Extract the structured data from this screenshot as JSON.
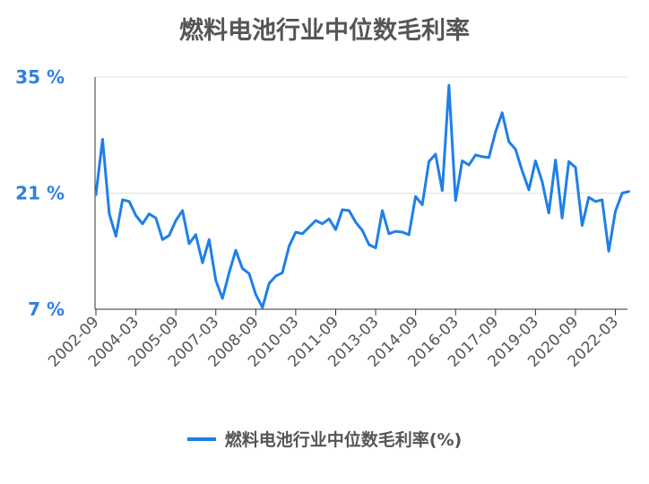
{
  "chart_data": {
    "type": "line",
    "title": "燃料电池行业中位数毛利率",
    "xlabel": "",
    "ylabel": "",
    "ylim": [
      7,
      35
    ],
    "yticks": [
      {
        "value": 35,
        "label": "35 %"
      },
      {
        "value": 21,
        "label": "21 %"
      },
      {
        "value": 7,
        "label": "7 %"
      }
    ],
    "x_tick_labels": [
      "2002-09",
      "2004-03",
      "2005-09",
      "2007-03",
      "2008-09",
      "2010-03",
      "2011-09",
      "2013-03",
      "2014-09",
      "2016-03",
      "2017-09",
      "2019-03",
      "2020-09",
      "2022-03"
    ],
    "grid": "horizontal",
    "legend_position": "bottom",
    "color": "#1f7fe8",
    "series": [
      {
        "name": "燃料电池行业中位数毛利率(%)",
        "x": [
          "2002-09",
          "2002-12",
          "2003-03",
          "2003-06",
          "2003-09",
          "2003-12",
          "2004-03",
          "2004-06",
          "2004-09",
          "2004-12",
          "2005-03",
          "2005-06",
          "2005-09",
          "2005-12",
          "2006-03",
          "2006-06",
          "2006-09",
          "2006-12",
          "2007-03",
          "2007-06",
          "2007-09",
          "2007-12",
          "2008-03",
          "2008-06",
          "2008-09",
          "2008-12",
          "2009-03",
          "2009-06",
          "2009-09",
          "2009-12",
          "2010-03",
          "2010-06",
          "2010-09",
          "2010-12",
          "2011-03",
          "2011-06",
          "2011-09",
          "2011-12",
          "2012-03",
          "2012-06",
          "2012-09",
          "2012-12",
          "2013-03",
          "2013-06",
          "2013-09",
          "2013-12",
          "2014-03",
          "2014-06",
          "2014-09",
          "2014-12",
          "2015-03",
          "2015-06",
          "2015-09",
          "2015-12",
          "2016-03",
          "2016-06",
          "2016-09",
          "2016-12",
          "2017-03",
          "2017-06",
          "2017-09",
          "2017-12",
          "2018-03",
          "2018-06",
          "2018-09",
          "2018-12",
          "2019-03",
          "2019-06",
          "2019-09",
          "2019-12",
          "2020-03",
          "2020-06",
          "2020-09",
          "2020-12",
          "2021-03",
          "2021-06",
          "2021-09",
          "2021-12",
          "2022-03",
          "2022-06",
          "2022-09"
        ],
        "values": [
          20.8,
          27.5,
          18.5,
          15.8,
          20.2,
          20.0,
          18.3,
          17.3,
          18.5,
          18.0,
          15.4,
          15.9,
          17.7,
          18.9,
          14.9,
          16.0,
          12.6,
          15.4,
          10.5,
          8.3,
          11.4,
          14.1,
          11.9,
          11.3,
          8.8,
          7.2,
          10.1,
          11.0,
          11.4,
          14.6,
          16.3,
          16.1,
          16.9,
          17.7,
          17.3,
          17.9,
          16.6,
          19.0,
          18.9,
          17.5,
          16.5,
          14.8,
          14.4,
          18.9,
          16.1,
          16.4,
          16.3,
          16.0,
          20.6,
          19.6,
          24.8,
          25.7,
          21.3,
          34.0,
          20.1,
          24.9,
          24.4,
          25.6,
          25.4,
          25.3,
          28.4,
          30.7,
          27.2,
          26.3,
          23.7,
          21.4,
          24.9,
          22.4,
          18.6,
          25.0,
          18.0,
          24.8,
          24.1,
          17.1,
          20.5,
          20.0,
          20.2,
          14.0,
          18.8,
          21.0,
          21.2
        ]
      }
    ]
  }
}
